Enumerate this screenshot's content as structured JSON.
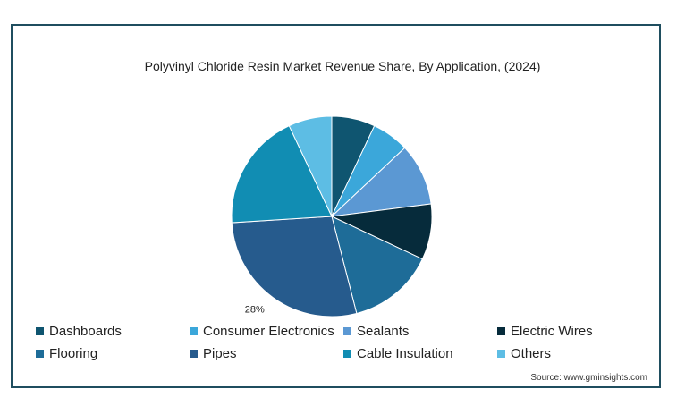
{
  "chart_data": {
    "type": "pie",
    "title": "Polyvinyl Chloride Resin Market Revenue Share, By Application, (2024)",
    "categories": [
      "Dashboards",
      "Consumer Electronics",
      "Sealants",
      "Electric Wires",
      "Flooring",
      "Pipes",
      "Cable Insulation",
      "Others"
    ],
    "values": [
      7,
      6,
      10,
      9,
      14,
      28,
      19,
      7
    ],
    "colors": [
      "#0f5570",
      "#3ba7da",
      "#5b98d3",
      "#062b3b",
      "#1e6c98",
      "#265b8d",
      "#118db3",
      "#5dbde4"
    ],
    "data_labels": [
      "",
      "",
      "",
      "",
      "",
      "28%",
      "",
      ""
    ],
    "legend_position": "bottom"
  },
  "source_note": "Source: www.gminsights.com"
}
